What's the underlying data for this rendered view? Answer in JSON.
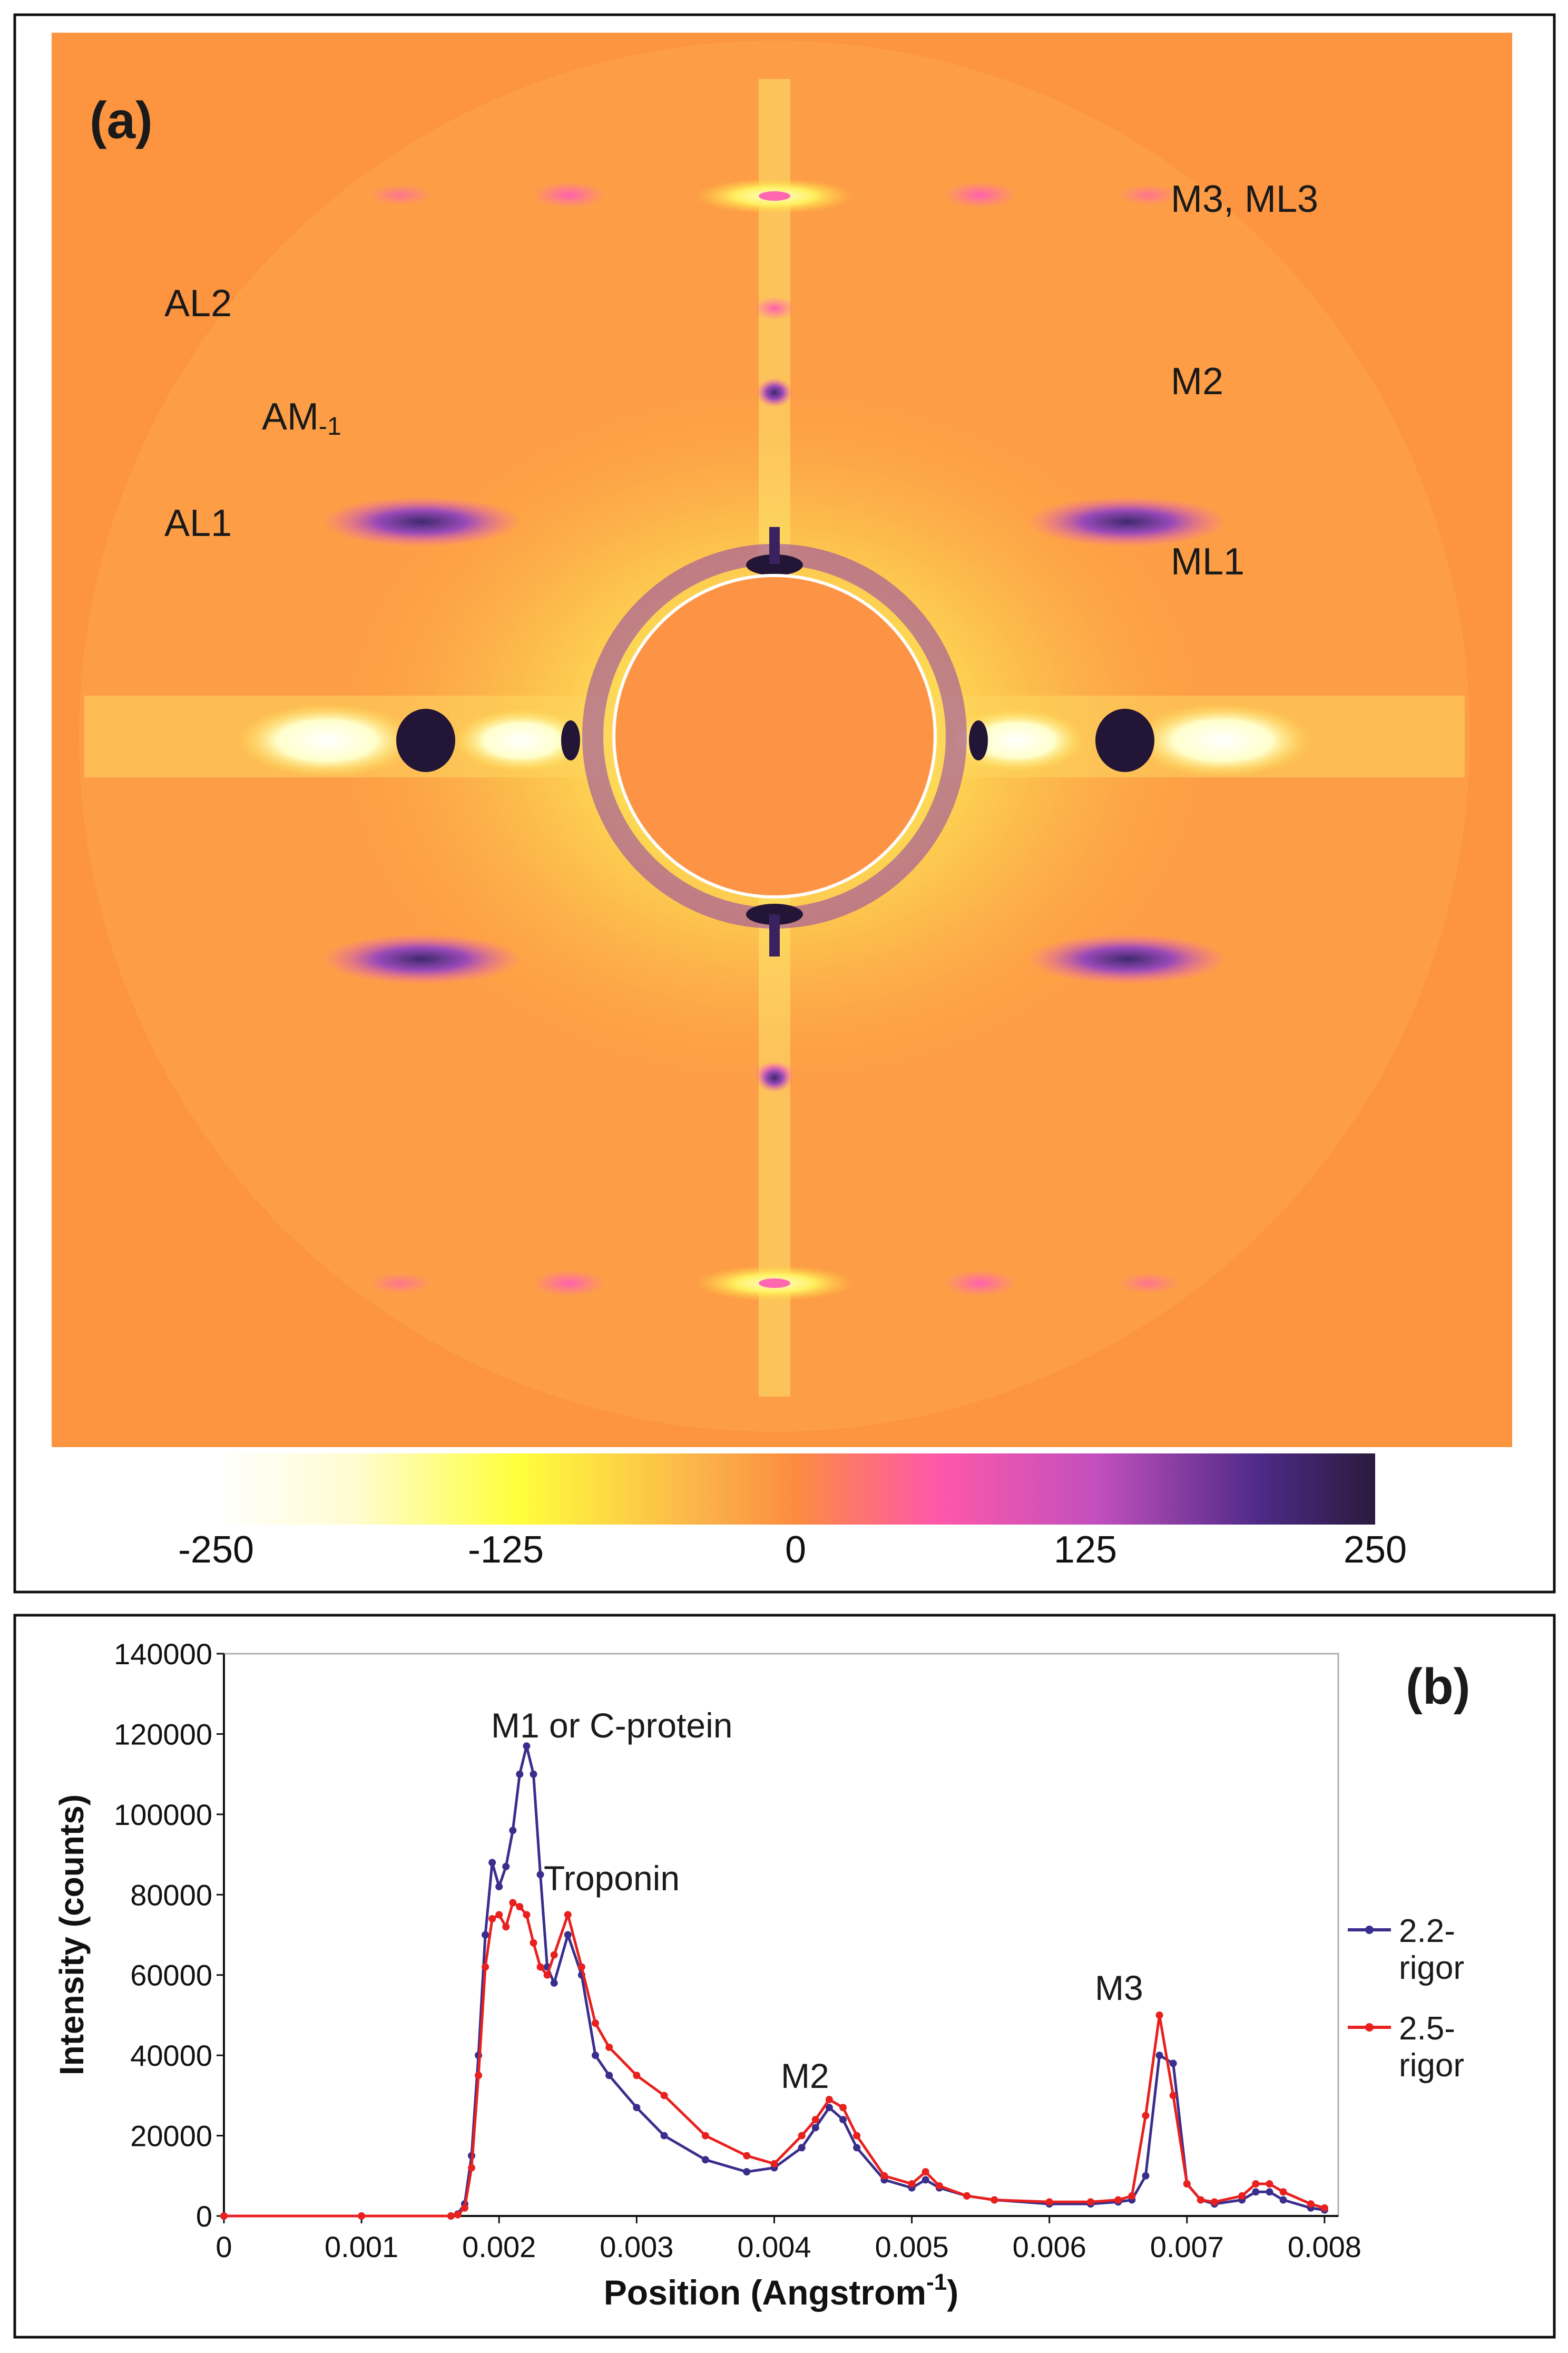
{
  "panel_a": {
    "panel_label": "(a)",
    "pattern_labels": {
      "al2": "AL2",
      "am1_main": "AM",
      "am1_sub": "-1",
      "al1": "AL1",
      "m3_ml3": "M3, ML3",
      "m2": "M2",
      "ml1": "ML1"
    },
    "colorbar": {
      "ticks": [
        "-250",
        "-125",
        "0",
        "125",
        "250"
      ],
      "min": -250,
      "max": 250,
      "colors": [
        "#ffffff",
        "#ffff3c",
        "#fbb24a",
        "#fc8c40",
        "#ff58a8",
        "#c24fbd",
        "#4e2a87",
        "#2a1b3e"
      ]
    },
    "colors": {
      "background": "#fc9440",
      "inner_disk": "#fd9445",
      "ring": "#fda045"
    }
  },
  "panel_b": {
    "panel_label": "(b)",
    "annotations": {
      "m1": "M1 or C-protein",
      "troponin": "Troponin",
      "m2": "M2",
      "m3": "M3"
    },
    "legend": [
      {
        "line1": "2.2-",
        "line2": "rigor",
        "color": "#3a2e8c"
      },
      {
        "line1": "2.5-",
        "line2": "rigor",
        "color": "#e8201e"
      }
    ]
  },
  "chart_data": {
    "type": "line",
    "title": "",
    "xlabel": "Position (Angstrom",
    "xlabel_sup": "-1",
    "xlabel_end": ")",
    "ylabel": "Intensity (counts)",
    "xlim": [
      0,
      0.0081
    ],
    "ylim": [
      0,
      140000
    ],
    "xticks": [
      "0",
      "0.001",
      "0.002",
      "0.003",
      "0.004",
      "0.005",
      "0.006",
      "0.007",
      "0.008"
    ],
    "yticks": [
      "0",
      "20000",
      "40000",
      "60000",
      "80000",
      "100000",
      "120000",
      "140000"
    ],
    "series": [
      {
        "name": "2.2-rigor",
        "color": "#3a2e8c",
        "x": [
          0,
          0.001,
          0.00165,
          0.0017,
          0.00175,
          0.0018,
          0.00185,
          0.0019,
          0.00195,
          0.002,
          0.00205,
          0.0021,
          0.00215,
          0.0022,
          0.00225,
          0.0023,
          0.00235,
          0.0024,
          0.0025,
          0.0026,
          0.0027,
          0.0028,
          0.003,
          0.0032,
          0.0035,
          0.0038,
          0.004,
          0.0042,
          0.0043,
          0.0044,
          0.0045,
          0.0046,
          0.0048,
          0.005,
          0.0051,
          0.0052,
          0.0054,
          0.0056,
          0.006,
          0.0063,
          0.0065,
          0.0066,
          0.0067,
          0.0068,
          0.0069,
          0.007,
          0.0071,
          0.0072,
          0.0074,
          0.0075,
          0.0076,
          0.0077,
          0.0079,
          0.008
        ],
        "y": [
          0,
          0,
          0,
          500,
          3000,
          15000,
          40000,
          70000,
          88000,
          82000,
          87000,
          96000,
          110000,
          117000,
          110000,
          85000,
          62000,
          58000,
          70000,
          60000,
          40000,
          35000,
          27000,
          20000,
          14000,
          11000,
          12000,
          17000,
          22000,
          27000,
          24000,
          17000,
          9000,
          7000,
          9000,
          7000,
          5000,
          4000,
          3000,
          3000,
          3500,
          4000,
          10000,
          40000,
          38000,
          8000,
          4000,
          3000,
          4000,
          6000,
          6000,
          4000,
          2000,
          1500
        ]
      },
      {
        "name": "2.5-rigor",
        "color": "#e8201e",
        "x": [
          0,
          0.001,
          0.00165,
          0.0017,
          0.00175,
          0.0018,
          0.00185,
          0.0019,
          0.00195,
          0.002,
          0.00205,
          0.0021,
          0.00215,
          0.0022,
          0.00225,
          0.0023,
          0.00235,
          0.0024,
          0.0025,
          0.0026,
          0.0027,
          0.0028,
          0.003,
          0.0032,
          0.0035,
          0.0038,
          0.004,
          0.0042,
          0.0043,
          0.0044,
          0.0045,
          0.0046,
          0.0048,
          0.005,
          0.0051,
          0.0052,
          0.0054,
          0.0056,
          0.006,
          0.0063,
          0.0065,
          0.0066,
          0.0067,
          0.0068,
          0.0069,
          0.007,
          0.0071,
          0.0072,
          0.0074,
          0.0075,
          0.0076,
          0.0077,
          0.0079,
          0.008
        ],
        "y": [
          0,
          0,
          0,
          300,
          2000,
          12000,
          35000,
          62000,
          74000,
          75000,
          72000,
          78000,
          77000,
          75000,
          68000,
          62000,
          60000,
          65000,
          75000,
          62000,
          48000,
          42000,
          35000,
          30000,
          20000,
          15000,
          13000,
          20000,
          24000,
          29000,
          27000,
          20000,
          10000,
          8000,
          11000,
          7500,
          5000,
          4000,
          3500,
          3500,
          4000,
          5000,
          25000,
          50000,
          30000,
          8000,
          4000,
          3500,
          5000,
          8000,
          8000,
          6000,
          3000,
          2000
        ]
      }
    ]
  }
}
